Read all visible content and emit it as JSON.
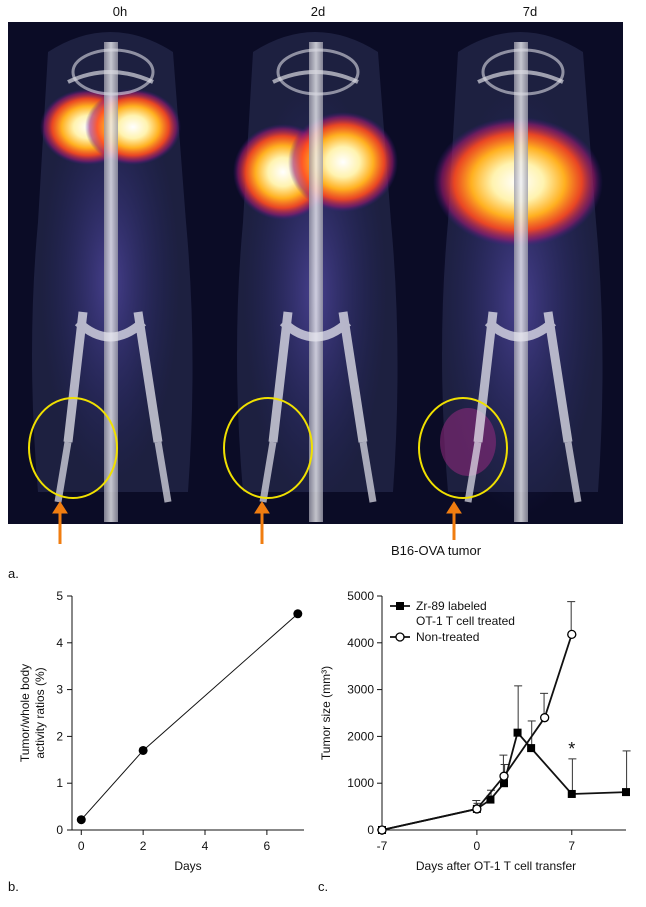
{
  "figure": {
    "time_labels": [
      "0h",
      "2d",
      "7d"
    ],
    "tumor_label": "B16-OVA tumor",
    "panel_a": "a.",
    "panel_b": "b.",
    "panel_c": "c.",
    "colors": {
      "ellipse": "#f0e000",
      "arrow": "#f07d10",
      "hot": "#ffffff",
      "mid": "#ff6a1a",
      "cool": "#3a2a8a"
    }
  },
  "chart_data": [
    {
      "type": "line",
      "xlabel": "Days",
      "ylabel": "Tumor/whole body activity ratios (%)",
      "ylabel_lines": [
        "Tumor/whole body",
        "activity ratios (%)"
      ],
      "xlim": [
        -0.3,
        7.2
      ],
      "ylim": [
        0,
        5
      ],
      "xticks": [
        0,
        2,
        4,
        6
      ],
      "yticks": [
        0,
        1,
        2,
        3,
        4,
        5
      ],
      "series": [
        {
          "x": [
            0,
            2,
            7
          ],
          "y": [
            0.22,
            1.7,
            4.62
          ]
        }
      ]
    },
    {
      "type": "line",
      "xlabel": "Days after OT-1 T cell transfer",
      "ylabel": "Tumor size (mm³)",
      "xlim": [
        -7,
        11
      ],
      "ylim": [
        0,
        5000
      ],
      "xticks": [
        -7,
        0,
        7
      ],
      "yticks": [
        0,
        1000,
        2000,
        3000,
        4000,
        5000
      ],
      "legend": "top-left",
      "annotation": "*",
      "series": [
        {
          "name": "Zr-89 labeled OT-1 T cell treated",
          "name_lines": [
            "Zr-89 labeled",
            "OT-1 T cell treated"
          ],
          "marker": "filled-square",
          "x": [
            -7,
            0,
            1,
            2,
            3,
            4,
            7,
            11
          ],
          "y": [
            0,
            450,
            650,
            1000,
            2080,
            1750,
            770,
            810
          ],
          "err": [
            0,
            120,
            200,
            400,
            1000,
            580,
            750,
            880
          ]
        },
        {
          "name": "Non-treated",
          "marker": "open-circle",
          "x": [
            -7,
            0,
            2,
            5,
            7
          ],
          "y": [
            0,
            450,
            1150,
            2400,
            4180
          ],
          "err": [
            0,
            180,
            450,
            520,
            700
          ]
        }
      ]
    }
  ]
}
